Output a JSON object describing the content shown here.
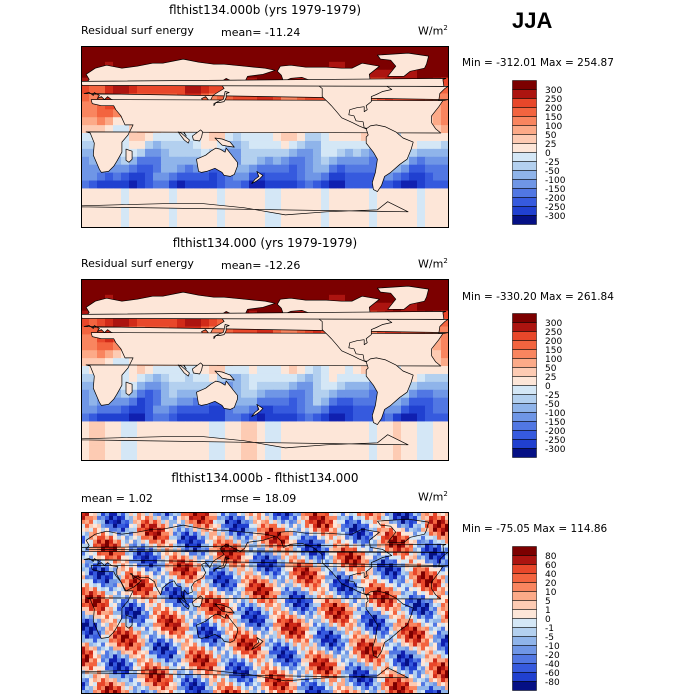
{
  "season": "JJA",
  "colors": {
    "pos": [
      "#fde6d8",
      "#fdcbb3",
      "#fcaa88",
      "#f9855f",
      "#f3643f",
      "#e8472a",
      "#d12a18",
      "#ac1410",
      "#7c0000"
    ],
    "neg": [
      "#d4e7f6",
      "#b3d0ef",
      "#8fb4ea",
      "#6f96e6",
      "#5177e3",
      "#365ade",
      "#2040d0",
      "#1020b0",
      "#051085"
    ],
    "land": "#fde6d8",
    "coast": "#000000"
  },
  "chart_data": [
    {
      "type": "heatmap",
      "title": "flthist134.000b (yrs 1979-1979)",
      "field": "Residual surf energy",
      "mean": "mean= -11.24",
      "units_base": "W/m",
      "units_exp": "2",
      "min_label": "Min = -312.01",
      "max_label": "Max = 254.87",
      "min": -312.01,
      "max": 254.87,
      "levels": [
        "300",
        "250",
        "200",
        "150",
        "100",
        "50",
        "25",
        "0",
        "-25",
        "-50",
        "-100",
        "-150",
        "-200",
        "-250",
        "-300"
      ]
    },
    {
      "type": "heatmap",
      "title": "flthist134.000 (yrs 1979-1979)",
      "field": "Residual surf energy",
      "mean": "mean= -12.26",
      "units_base": "W/m",
      "units_exp": "2",
      "min_label": "Min = -330.20",
      "max_label": "Max = 261.84",
      "min": -330.2,
      "max": 261.84,
      "levels": [
        "300",
        "250",
        "200",
        "150",
        "100",
        "50",
        "25",
        "0",
        "-25",
        "-50",
        "-100",
        "-150",
        "-200",
        "-250",
        "-300"
      ]
    },
    {
      "type": "heatmap",
      "title": "flthist134.000b - flthist134.000",
      "mean": "mean =   1.02",
      "rmse": "rmse =  18.09",
      "units_base": "W/m",
      "units_exp": "2",
      "min_label": "Min = -75.05",
      "max_label": "Max = 114.86",
      "min": -75.05,
      "max": 114.86,
      "levels": [
        "80",
        "60",
        "40",
        "20",
        "10",
        "5",
        "1",
        "0",
        "-1",
        "-5",
        "-10",
        "-20",
        "-40",
        "-60",
        "-80"
      ]
    }
  ]
}
